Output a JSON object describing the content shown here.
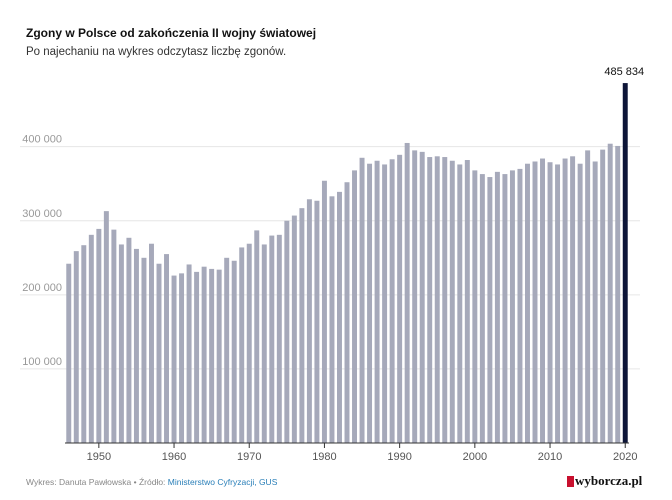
{
  "title": "Zgony w Polsce od zakończenia II wojny światowej",
  "subtitle": "Po najechaniu na wykres odczytasz liczbę zgonów.",
  "footer": {
    "prefix": "Wykres: Danuta Pawłowska • Źródło: ",
    "source": "Ministerstwo Cyfryzacji, GUS"
  },
  "logo": {
    "text": "wyborcza.pl"
  },
  "colors": {
    "bar": "#a6a9ba",
    "highlight": "#0d1538",
    "grid": "#e6e6e6"
  },
  "chart_data": {
    "type": "bar",
    "title": "Zgony w Polsce od zakończenia II wojny światowej",
    "xlabel": "",
    "ylabel": "",
    "ylim": [
      0,
      490000
    ],
    "yticks": [
      100000,
      200000,
      300000,
      400000
    ],
    "ytick_labels": [
      "100 000",
      "200 000",
      "300 000",
      "400 000"
    ],
    "xticks": [
      1950,
      1960,
      1970,
      1980,
      1990,
      2000,
      2010,
      2020
    ],
    "highlight": {
      "year": 2020,
      "label": "485 834"
    },
    "categories": [
      1946,
      1947,
      1948,
      1949,
      1950,
      1951,
      1952,
      1953,
      1954,
      1955,
      1956,
      1957,
      1958,
      1959,
      1960,
      1961,
      1962,
      1963,
      1964,
      1965,
      1966,
      1967,
      1968,
      1969,
      1970,
      1971,
      1972,
      1973,
      1974,
      1975,
      1976,
      1977,
      1978,
      1979,
      1980,
      1981,
      1982,
      1983,
      1984,
      1985,
      1986,
      1987,
      1988,
      1989,
      1990,
      1991,
      1992,
      1993,
      1994,
      1995,
      1996,
      1997,
      1998,
      1999,
      2000,
      2001,
      2002,
      2003,
      2004,
      2005,
      2006,
      2007,
      2008,
      2009,
      2010,
      2011,
      2012,
      2013,
      2014,
      2015,
      2016,
      2017,
      2018,
      2019,
      2020
    ],
    "values": [
      242000,
      259000,
      267000,
      281000,
      289000,
      313000,
      288000,
      268000,
      277000,
      262000,
      250000,
      269000,
      242000,
      255000,
      226000,
      229000,
      241000,
      231000,
      238000,
      235000,
      234000,
      250000,
      246000,
      264000,
      269000,
      287000,
      268000,
      280000,
      281000,
      300000,
      307000,
      317000,
      329000,
      327000,
      354000,
      333000,
      339000,
      352000,
      368000,
      385000,
      377000,
      381000,
      376000,
      383000,
      389000,
      405000,
      395000,
      393000,
      386000,
      387000,
      386000,
      381000,
      376000,
      382000,
      368000,
      363000,
      359000,
      366000,
      363000,
      368000,
      370000,
      377000,
      380000,
      384000,
      379000,
      376000,
      384000,
      387000,
      377000,
      395000,
      380000,
      396000,
      404000,
      401000,
      485834
    ]
  }
}
